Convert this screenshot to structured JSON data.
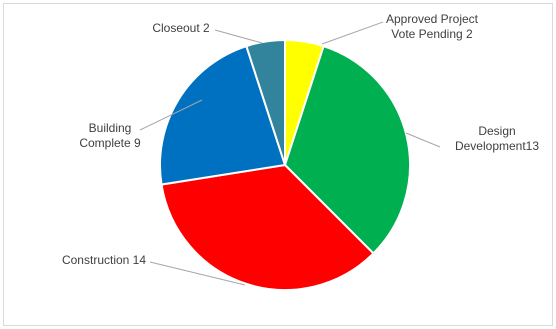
{
  "chart_data": {
    "type": "pie",
    "title": "",
    "legend": "none",
    "slices": [
      {
        "name": "Approved Project Vote Pending",
        "value": 2,
        "color": "#ffff00",
        "label_lines": [
          "Approved Project",
          "Vote Pending 2"
        ]
      },
      {
        "name": "Design Development",
        "value": 13,
        "color": "#00b050",
        "label_lines": [
          "Design",
          "Development13"
        ]
      },
      {
        "name": "Construction",
        "value": 14,
        "color": "#ff0000",
        "label_lines": [
          "Construction 14"
        ]
      },
      {
        "name": "Building Complete",
        "value": 9,
        "color": "#0070c0",
        "label_lines": [
          "Building",
          "Complete 9"
        ]
      },
      {
        "name": "Closeout",
        "value": 2,
        "color": "#31849b",
        "label_lines": [
          "Closeout 2"
        ]
      }
    ]
  }
}
